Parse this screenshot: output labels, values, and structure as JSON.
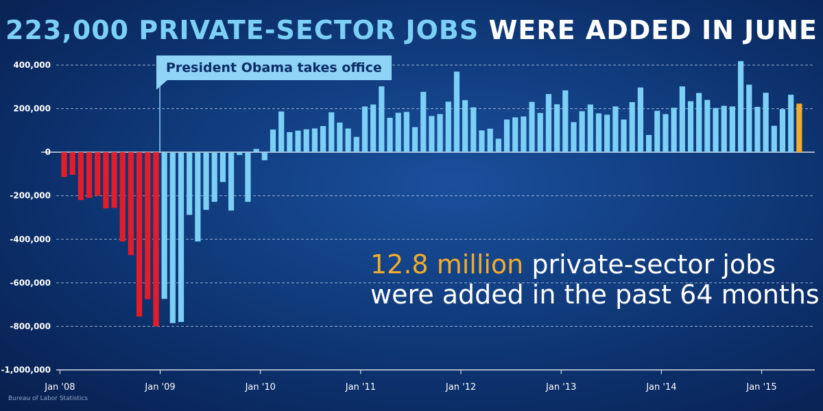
{
  "title": {
    "part1": "223,000 PRIVATE-SECTOR JOBS",
    "part2": "WERE ADDED IN JUNE"
  },
  "annotation": "President Obama takes office",
  "callout": {
    "highlight": "12.8 million",
    "line1_rest": "private-sector jobs",
    "line2": "were added in the past 64 months"
  },
  "source": "Bureau of Labor Statistics",
  "colors": {
    "before": "#e41c2a",
    "after": "#7ccff5",
    "latest": "#f2ac2b",
    "title_accent": "#7ccff5"
  },
  "chart_data": {
    "type": "bar",
    "ylim": [
      -1000000,
      400000
    ],
    "yticks": [
      400000,
      200000,
      0,
      -200000,
      -400000,
      -600000,
      -800000,
      -1000000
    ],
    "ytick_labels": [
      "400,000",
      "200,000",
      "0",
      "-200,000",
      "-400,000",
      "-600,000",
      "-800,000",
      "-1,000,000"
    ],
    "xtick_labels": [
      {
        "label": "Jan '08",
        "index": 0
      },
      {
        "label": "Jan '09",
        "index": 12
      },
      {
        "label": "Jan '10",
        "index": 24
      },
      {
        "label": "Jan '11",
        "index": 36
      },
      {
        "label": "Jan '12",
        "index": 48
      },
      {
        "label": "Jan '13",
        "index": 60
      },
      {
        "label": "Jan '14",
        "index": 72
      },
      {
        "label": "Jan '15",
        "index": 84
      }
    ],
    "grid": true,
    "start": "Jan 2008",
    "end": "Jun 2015",
    "inauguration_index": 12,
    "series": [
      {
        "values": [
          -114000,
          -104000,
          -220000,
          -210000,
          -200000,
          -258000,
          -256000,
          -410000,
          -473000,
          -755000,
          -675000,
          -800000
        ]
      },
      {
        "values": [
          -674000,
          -785000,
          -780000,
          -288000,
          -410000,
          -265000,
          -228000,
          -137000,
          -268000,
          -13000,
          -228000,
          15000,
          -37000,
          104000,
          187000,
          92000,
          99000,
          105000,
          109000,
          120000,
          183000,
          136000,
          109000,
          70000,
          210000,
          219000,
          302000,
          158000,
          181000,
          185000,
          115000,
          277000,
          166000,
          175000,
          232000,
          370000,
          239000,
          206000,
          100000,
          108000,
          62000,
          150000,
          160000,
          164000,
          231000,
          180000,
          267000,
          220000,
          284000,
          138000,
          188000,
          219000,
          178000,
          172000,
          210000,
          150000,
          230000,
          297000,
          79000,
          190000,
          175000,
          204000,
          302000,
          234000,
          272000,
          240000,
          203000,
          213000,
          210000,
          418000,
          310000,
          208000,
          273000,
          121000,
          198000,
          264000
        ]
      },
      {
        "values": [
          223000
        ]
      }
    ]
  }
}
